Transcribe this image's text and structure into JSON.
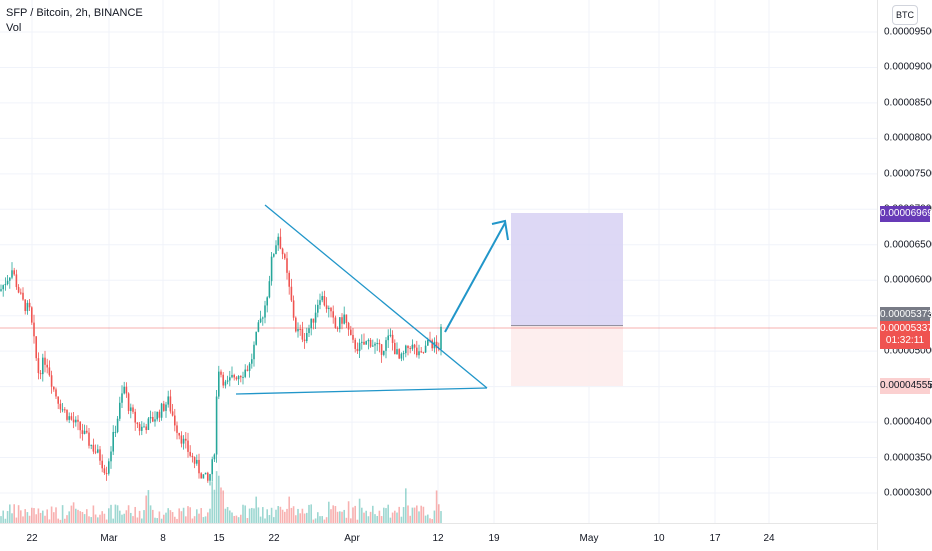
{
  "legend": {
    "symbol_line": "SFP / Bitcoin, 2h, BINANCE",
    "volume_label": "Vol"
  },
  "axis": {
    "currency_button": "BTC",
    "price_ticks": [
      "0.00009500",
      "0.00009000",
      "0.00008500",
      "0.00008000",
      "0.00007500",
      "0.00007000",
      "0.00006500",
      "0.00006000",
      "0.00005500",
      "0.00005000",
      "0.00004500",
      "0.00004000",
      "0.00003500",
      "0.00003000"
    ],
    "time_ticks": [
      "22",
      "Mar",
      "8",
      "15",
      "22",
      "Apr",
      "12",
      "19",
      "May",
      "10",
      "17",
      "24"
    ]
  },
  "badges": {
    "target_price": "0.00006969",
    "entry_price": "0.00005373",
    "current_price": "0.00005337",
    "countdown": "01:32:11",
    "stop_price": "0.00004555"
  },
  "colors": {
    "up": "#26a69a",
    "down": "#ef5350",
    "trendline": "#2196c9",
    "target_zone": "#d7d1f3",
    "stop_zone": "#fdecec",
    "target_badge": "#673ab7",
    "entry_badge": "#787b86",
    "stop_badge_bg": "#fbd0d0",
    "stop_badge_text": "#131722"
  }
}
